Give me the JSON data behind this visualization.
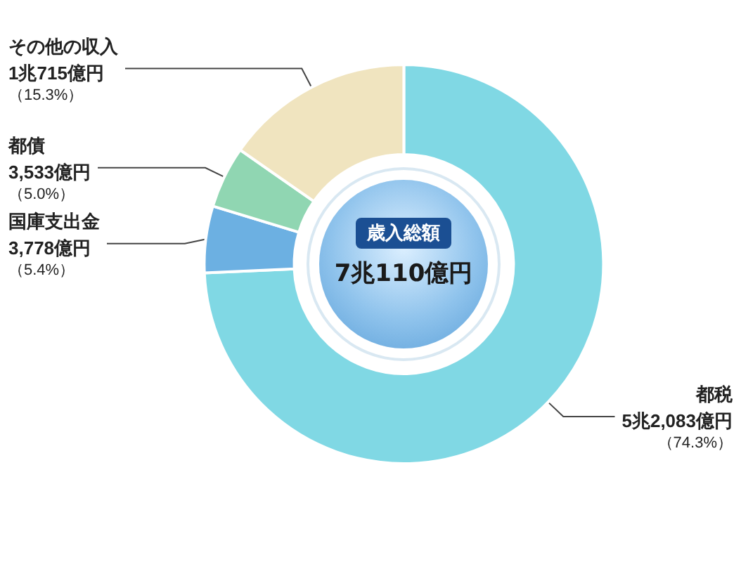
{
  "chart_data": {
    "type": "donut",
    "title": "歳入総額",
    "subtitle": "7兆110億円",
    "categories": [
      "都税",
      "国庫支出金",
      "都債",
      "その他の収入"
    ],
    "values": [
      74.3,
      5.4,
      5.0,
      15.3
    ],
    "colors": [
      "#80d8e4",
      "#6cb0e2",
      "#90d6b2",
      "#f0e4bf"
    ],
    "value_labels": [
      "5兆2,083億円（74.3%）",
      "3,778億円（5.4%）",
      "3,533億円（5.0%）",
      "1兆715億円（15.3%）"
    ],
    "legend": false
  }
}
